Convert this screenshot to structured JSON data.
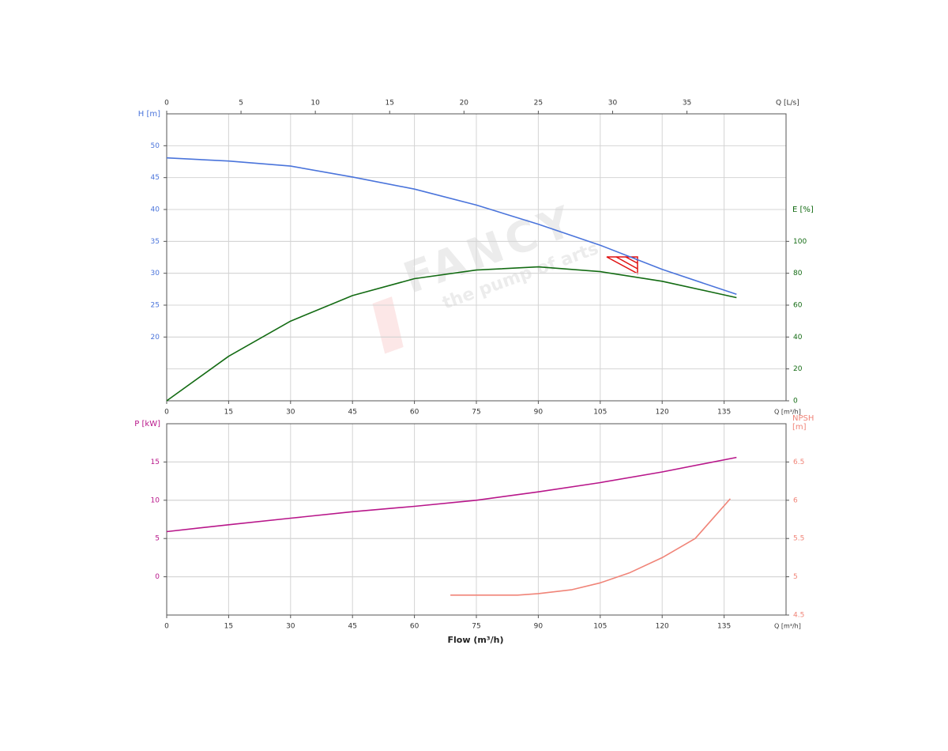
{
  "watermark": [
    "FANCY",
    "the pump of arts"
  ],
  "chart_data": [
    {
      "type": "line",
      "x_axis_label": "Q [m³/h]",
      "x2_axis_label": "Q [L/s]",
      "y_label": "H [m]",
      "y2_label": [
        "E [%]"
      ],
      "xlim": [
        0,
        150
      ],
      "xticks": [
        0,
        15,
        30,
        45,
        60,
        75,
        90,
        105,
        120,
        135
      ],
      "x2lim": [
        0,
        41.667
      ],
      "x2ticks": [
        0,
        5,
        10,
        15,
        20,
        25,
        30,
        35
      ],
      "ylim": [
        10,
        55
      ],
      "yticks": [
        20,
        25,
        30,
        35,
        40,
        45,
        50
      ],
      "y2lim": [
        0,
        180
      ],
      "y2ticks": [
        0,
        20,
        40,
        60,
        80,
        100
      ],
      "grid": true,
      "series": [
        {
          "color": "#4a74db",
          "x": [
            0,
            15,
            30,
            45,
            60,
            75,
            90,
            105,
            120,
            138
          ],
          "values": [
            48.1,
            47.6,
            46.8,
            45.1,
            43.2,
            40.7,
            37.7,
            34.4,
            30.6,
            26.7
          ]
        },
        {
          "color": "#136b13",
          "axis": "y2",
          "x": [
            0,
            15,
            30,
            45,
            60,
            75,
            90,
            105,
            120,
            138
          ],
          "values": [
            0,
            27.9,
            50,
            66,
            76.6,
            82,
            84,
            81,
            75,
            64.7
          ]
        }
      ]
    },
    {
      "type": "line",
      "x_axis_label": "Q [m³/h]",
      "x_title": "Flow (m³/h)",
      "y_label": "P [kW]",
      "y2_label": [
        "NPSH",
        "[m]"
      ],
      "xlim": [
        0,
        150
      ],
      "xticks": [
        0,
        15,
        30,
        45,
        60,
        75,
        90,
        105,
        120,
        135
      ],
      "ylim": [
        -5,
        20
      ],
      "yticks": [
        0,
        5,
        10,
        15
      ],
      "y2lim": [
        4.5,
        7
      ],
      "y2ticks": [
        4.5,
        5,
        5.5,
        6,
        6.5
      ],
      "grid": true,
      "series": [
        {
          "color": "#b8168a",
          "x": [
            0,
            15,
            30,
            45,
            60,
            75,
            90,
            105,
            120,
            138
          ],
          "values": [
            5.9,
            6.8,
            7.66,
            8.5,
            9.2,
            10.0,
            11.1,
            12.3,
            13.7,
            15.6
          ]
        },
        {
          "color": "#f08478",
          "axis": "y2",
          "x": [
            68.7,
            85,
            90,
            98,
            105,
            112,
            120,
            128,
            136.5
          ],
          "values": [
            4.76,
            4.76,
            4.78,
            4.83,
            4.92,
            5.05,
            5.25,
            5.5,
            6.02
          ]
        }
      ]
    }
  ]
}
